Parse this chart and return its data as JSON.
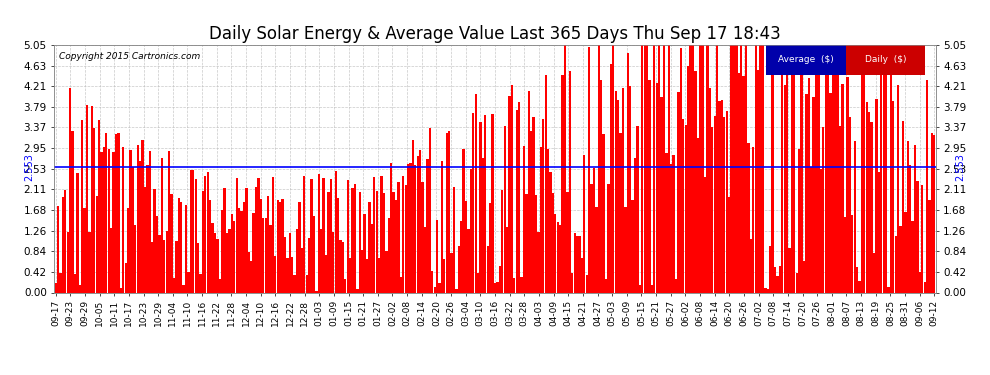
{
  "title": "Daily Solar Energy & Average Value Last 365 Days Thu Sep 17 18:43",
  "copyright": "Copyright 2015 Cartronics.com",
  "average_value": 2.553,
  "ylim": [
    0.0,
    5.05
  ],
  "yticks": [
    0.0,
    0.42,
    0.84,
    1.26,
    1.68,
    2.11,
    2.53,
    2.95,
    3.37,
    3.79,
    4.21,
    4.63,
    5.05
  ],
  "bar_color": "#FF0000",
  "avg_line_color": "#0000FF",
  "background_color": "#FFFFFF",
  "grid_color": "#BBBBBB",
  "title_fontsize": 12,
  "legend_avg_bg": "#0000AA",
  "legend_daily_bg": "#CC0000",
  "legend_text_color": "#FFFFFF",
  "x_tick_labels": [
    "09-17",
    "09-23",
    "09-29",
    "10-05",
    "10-11",
    "10-17",
    "10-23",
    "10-29",
    "11-04",
    "11-10",
    "11-16",
    "11-22",
    "11-28",
    "12-04",
    "12-10",
    "12-16",
    "12-22",
    "12-28",
    "01-03",
    "01-09",
    "01-15",
    "01-21",
    "01-27",
    "02-02",
    "02-08",
    "02-14",
    "02-20",
    "02-26",
    "03-04",
    "03-10",
    "03-16",
    "03-22",
    "03-28",
    "04-03",
    "04-09",
    "04-15",
    "04-21",
    "04-27",
    "05-03",
    "05-09",
    "05-15",
    "05-21",
    "05-27",
    "06-02",
    "06-08",
    "06-14",
    "06-20",
    "06-26",
    "07-02",
    "07-08",
    "07-14",
    "07-20",
    "07-26",
    "08-01",
    "08-07",
    "08-13",
    "08-19",
    "08-25",
    "08-31",
    "09-06",
    "09-12"
  ]
}
